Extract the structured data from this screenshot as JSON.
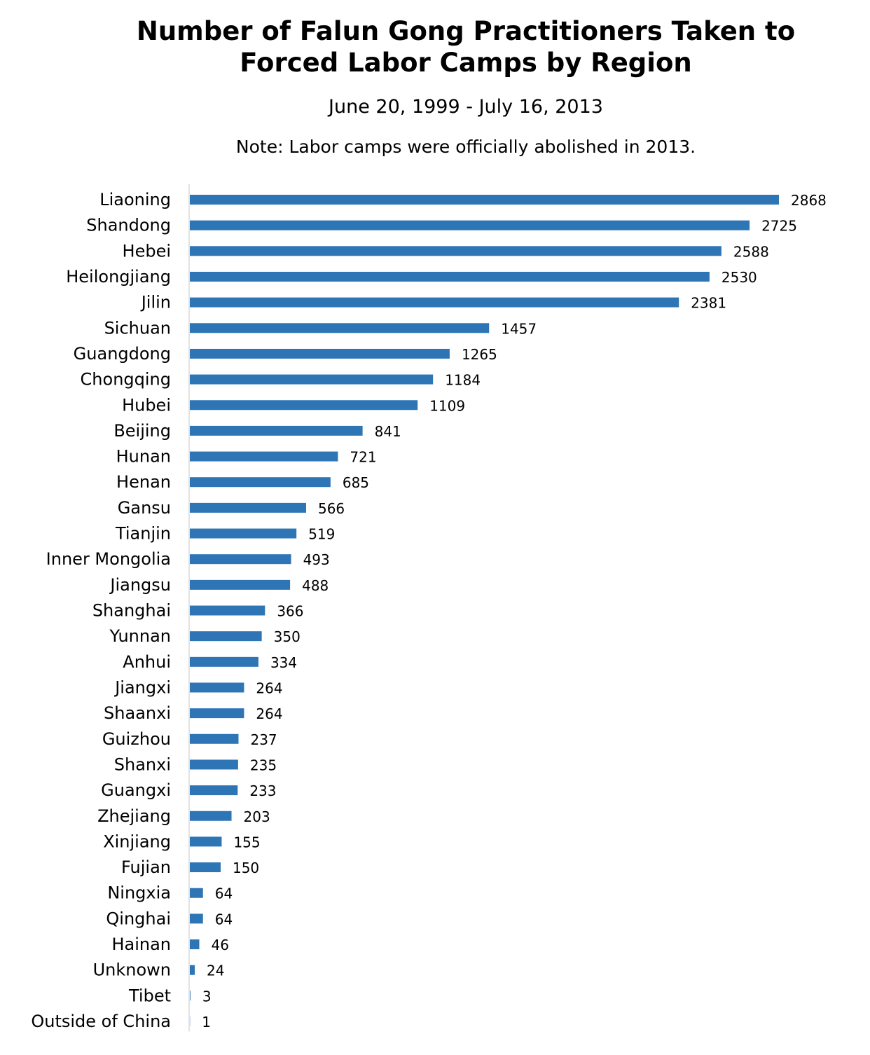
{
  "chart_data": {
    "type": "bar",
    "orientation": "horizontal",
    "title": [
      "Number of Falun Gong Practitioners Taken to",
      "Forced Labor Camps by Region"
    ],
    "subtitle": "June 20, 1999 - July 16, 2013",
    "note": "Note: Labor camps were officially abolished in 2013.",
    "bar_color": "#2E75B6",
    "axis_color": "#D9D9D9",
    "xlim": [
      0,
      2868
    ],
    "grid": false,
    "legend": "none",
    "categories": [
      "Liaoning",
      "Shandong",
      "Hebei",
      "Heilongjiang",
      "Jilin",
      "Sichuan",
      "Guangdong",
      "Chongqing",
      "Hubei",
      "Beijing",
      "Hunan",
      "Henan",
      "Gansu",
      "Tianjin",
      "Inner Mongolia",
      "Jiangsu",
      "Shanghai",
      "Yunnan",
      "Anhui",
      "Jiangxi",
      "Shaanxi",
      "Guizhou",
      "Shanxi",
      "Guangxi",
      "Zhejiang",
      "Xinjiang",
      "Fujian",
      "Ningxia",
      "Qinghai",
      "Hainan",
      "Unknown",
      "Tibet",
      "Outside of China"
    ],
    "values": [
      2868,
      2725,
      2588,
      2530,
      2381,
      1457,
      1265,
      1184,
      1109,
      841,
      721,
      685,
      566,
      519,
      493,
      488,
      366,
      350,
      334,
      264,
      264,
      237,
      235,
      233,
      203,
      155,
      150,
      64,
      64,
      46,
      24,
      3,
      1
    ]
  }
}
